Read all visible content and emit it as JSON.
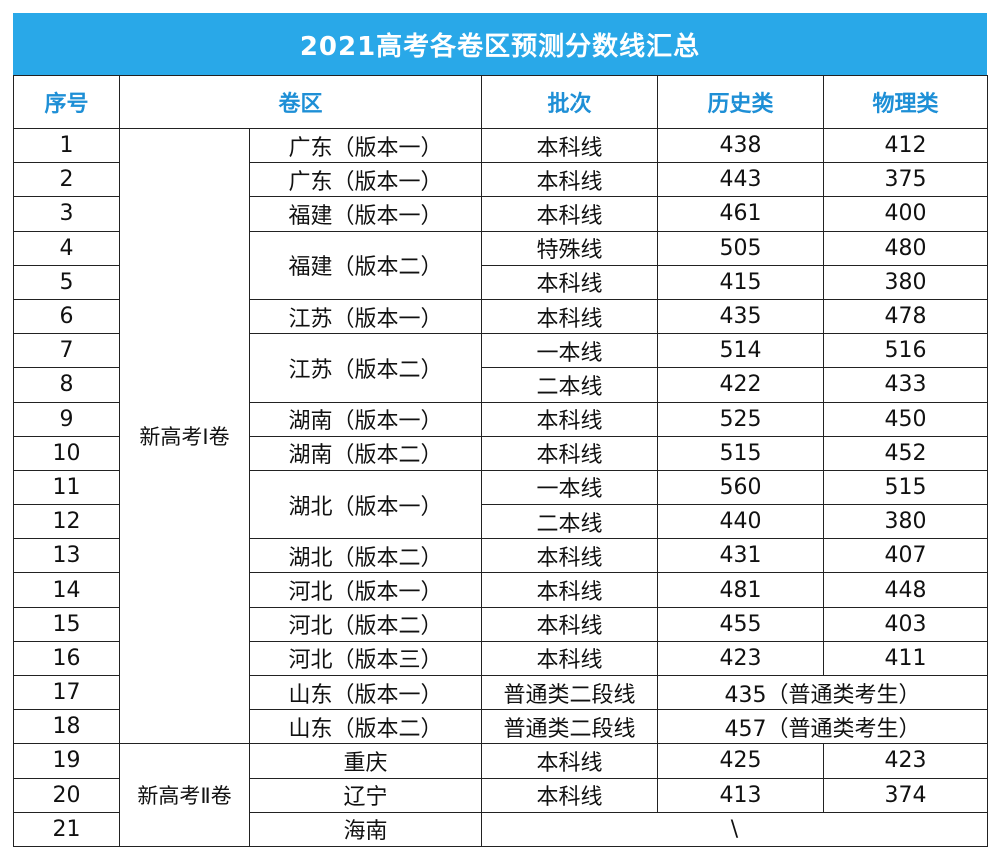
{
  "title": "2021高考各卷区预测分数线汇总",
  "headers": [
    "序号",
    "卷区",
    "批次",
    "历史类",
    "物理类"
  ],
  "groups": [
    "新高考Ⅰ卷",
    "新高考Ⅱ卷"
  ],
  "regions": [
    "广东（版本一）",
    "广东（版本一）",
    "福建（版本一）",
    "福建（版本二）",
    "江苏（版本一）",
    "江苏（版本二）",
    "湖南（版本一）",
    "湖南（版本二）",
    "湖北（版本一）",
    "湖北（版本二）",
    "河北（版本一）",
    "河北（版本二）",
    "河北（版本三）",
    "山东（版本一）",
    "山东（版本二）",
    "重庆",
    "辽宁",
    "海南"
  ],
  "rows": [
    {
      "no": "1",
      "batch": "本科线",
      "history": "438",
      "physics": "412"
    },
    {
      "no": "2",
      "batch": "本科线",
      "history": "443",
      "physics": "375"
    },
    {
      "no": "3",
      "batch": "本科线",
      "history": "461",
      "physics": "400"
    },
    {
      "no": "4",
      "batch": "特殊线",
      "history": "505",
      "physics": "480"
    },
    {
      "no": "5",
      "batch": "本科线",
      "history": "415",
      "physics": "380"
    },
    {
      "no": "6",
      "batch": "本科线",
      "history": "435",
      "physics": "478"
    },
    {
      "no": "7",
      "batch": "一本线",
      "history": "514",
      "physics": "516"
    },
    {
      "no": "8",
      "batch": "二本线",
      "history": "422",
      "physics": "433"
    },
    {
      "no": "9",
      "batch": "本科线",
      "history": "525",
      "physics": "450"
    },
    {
      "no": "10",
      "batch": "本科线",
      "history": "515",
      "physics": "452"
    },
    {
      "no": "11",
      "batch": "一本线",
      "history": "560",
      "physics": "515"
    },
    {
      "no": "12",
      "batch": "二本线",
      "history": "440",
      "physics": "380"
    },
    {
      "no": "13",
      "batch": "本科线",
      "history": "431",
      "physics": "407"
    },
    {
      "no": "14",
      "batch": "本科线",
      "history": "481",
      "physics": "448"
    },
    {
      "no": "15",
      "batch": "本科线",
      "history": "455",
      "physics": "403"
    },
    {
      "no": "16",
      "batch": "本科线",
      "history": "423",
      "physics": "411"
    },
    {
      "no": "17",
      "batch": "普通类二段线",
      "combined": "435（普通类考生）"
    },
    {
      "no": "18",
      "batch": "普通类二段线",
      "combined": "457（普通类考生）"
    },
    {
      "no": "19",
      "batch": "本科线",
      "history": "425",
      "physics": "423"
    },
    {
      "no": "20",
      "batch": "本科线",
      "history": "413",
      "physics": "374"
    },
    {
      "no": "21",
      "na": "\\"
    }
  ]
}
